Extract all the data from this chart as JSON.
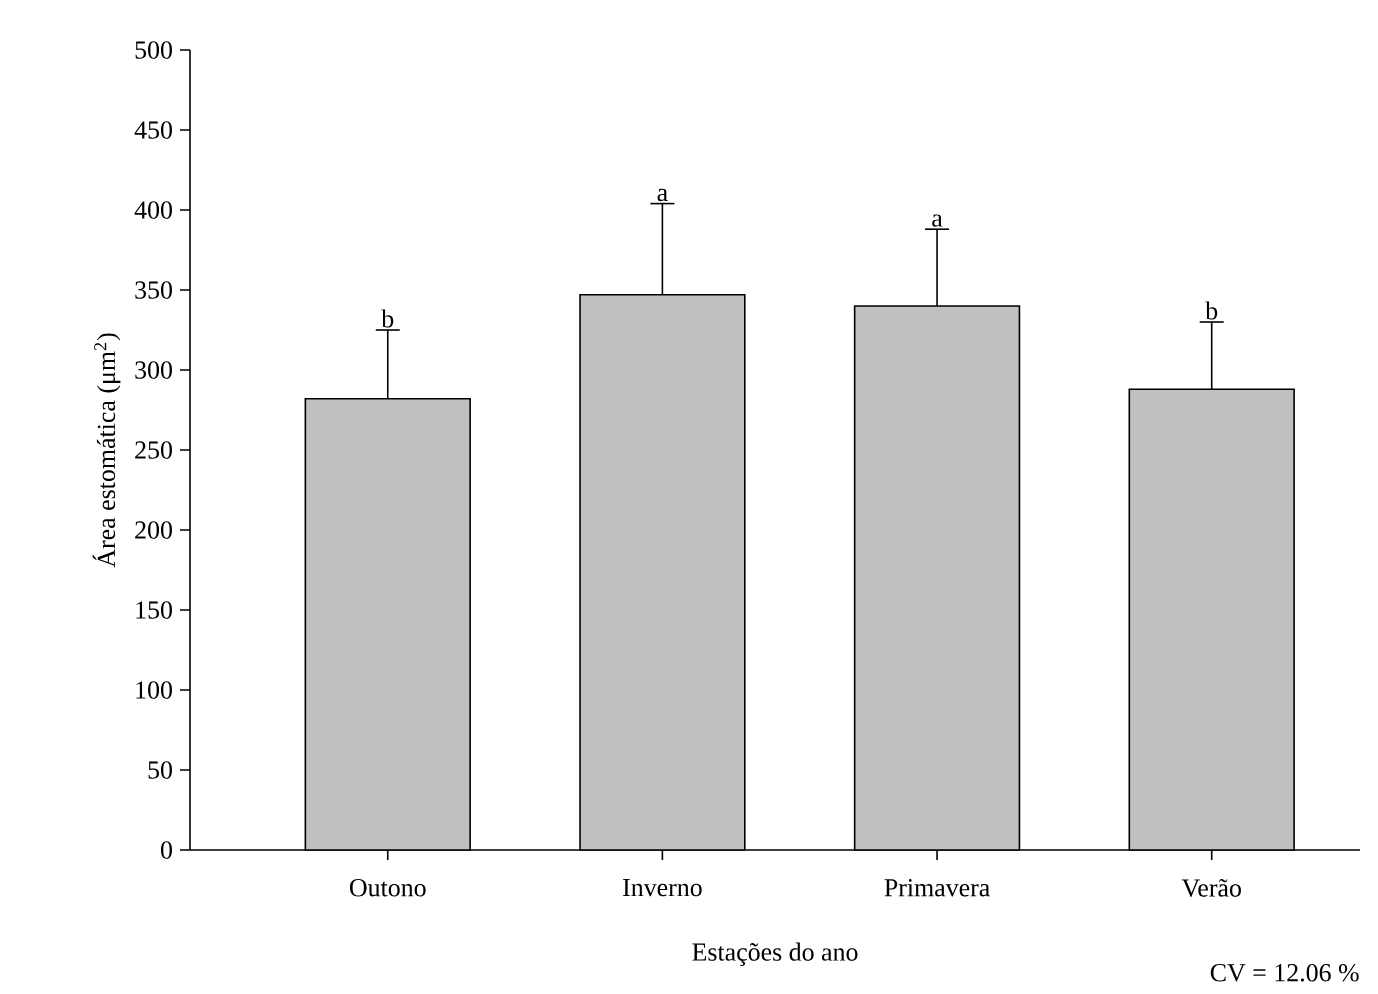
{
  "chart_data": {
    "type": "bar",
    "xlabel": "Estações do ano",
    "ylabel": "Área estomática (μm$^{2}$)",
    "categories": [
      "Outono",
      "Inverno",
      "Primavera",
      "Verão"
    ],
    "values": [
      282,
      347,
      340,
      288
    ],
    "errors": [
      [
        282,
        325
      ],
      [
        347,
        404
      ],
      [
        340,
        388
      ],
      [
        288,
        330
      ]
    ],
    "color": "#c0c0c0",
    "ylim": [
      0,
      500
    ],
    "yticks": [
      0,
      50,
      100,
      150,
      200,
      250,
      300,
      350,
      400,
      450,
      500
    ],
    "grid": false,
    "annotations": [
      "b",
      "a",
      "a",
      "b",
      "CV = 12.06 %"
    ]
  }
}
